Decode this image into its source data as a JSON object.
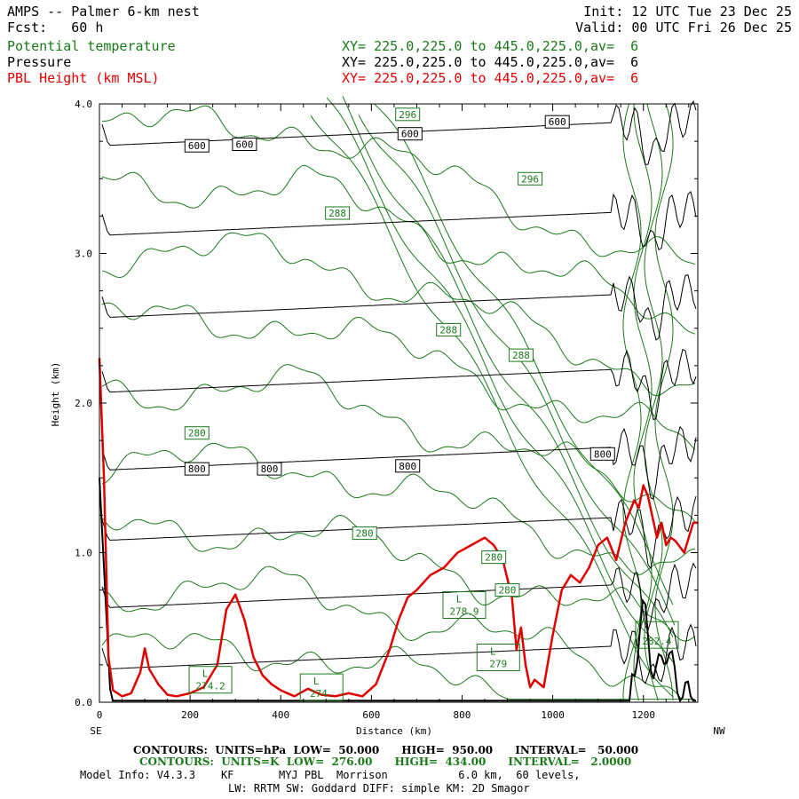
{
  "header": {
    "title": "AMPS -- Palmer 6-km nest",
    "forecast": "Fcst:   60 h",
    "init": "Init: 12 UTC Tue 23 Dec 25",
    "valid": "Valid: 00 UTC Fri 26 Dec 25",
    "fields": [
      {
        "name": "Potential temperature",
        "xy": "XY= 225.0,225.0 to 445.0,225.0,av=  6",
        "color": "#1a7a1a"
      },
      {
        "name": "Pressure",
        "xy": "XY= 225.0,225.0 to 445.0,225.0,av=  6",
        "color": "#000000"
      },
      {
        "name": "PBL Height (km MSL)",
        "xy": "XY= 225.0,225.0 to 445.0,225.0,av=  6",
        "color": "#e00000"
      }
    ]
  },
  "footer": {
    "pressure_contours": "CONTOURS:  UNITS=hPa  LOW=  50.000      HIGH=  950.00      INTERVAL=   50.000",
    "theta_contours": "CONTOURS:  UNITS=K  LOW=  276.00      HIGH=  434.00      INTERVAL=   2.0000",
    "model_info_1": "Model Info: V4.3.3    KF       MYJ PBL  Morrison           6.0 km,  60 levels,",
    "model_info_2": "LW: RRTM SW: Goddard DIFF: simple KM: 2D Smagor"
  },
  "chart_data": {
    "type": "line",
    "xlabel": "Distance (km)",
    "ylabel": "Height (km)",
    "xlim": [
      0,
      1320
    ],
    "ylim": [
      0,
      4.0
    ],
    "x_ticks": [
      0,
      200,
      400,
      600,
      800,
      1000,
      1200
    ],
    "y_ticks": [
      0.0,
      1.0,
      2.0,
      3.0,
      4.0
    ],
    "x_tick_labels": [
      "0",
      "200",
      "400",
      "600",
      "800",
      "1000",
      "1200"
    ],
    "y_tick_labels": [
      "0.0",
      "1.0",
      "2.0",
      "3.0",
      "4.0"
    ],
    "left_end_label": "SE",
    "right_end_label": "NW",
    "colors": {
      "pbl": "#e00000",
      "theta": "#1a7a1a",
      "pressure": "#000000"
    },
    "pbl_height_km": {
      "x": [
        0,
        10,
        20,
        30,
        50,
        70,
        90,
        100,
        110,
        130,
        150,
        170,
        200,
        230,
        260,
        280,
        300,
        320,
        340,
        360,
        380,
        400,
        430,
        460,
        490,
        520,
        550,
        580,
        610,
        640,
        660,
        680,
        700,
        730,
        760,
        790,
        820,
        850,
        870,
        890,
        910,
        920,
        930,
        940,
        950,
        960,
        980,
        1000,
        1020,
        1040,
        1060,
        1080,
        1100,
        1120,
        1140,
        1160,
        1180,
        1190,
        1200,
        1210,
        1230,
        1240,
        1250,
        1260,
        1270,
        1290,
        1310,
        1320
      ],
      "y": [
        2.3,
        1.5,
        0.3,
        0.08,
        0.04,
        0.06,
        0.2,
        0.36,
        0.22,
        0.12,
        0.05,
        0.04,
        0.06,
        0.1,
        0.25,
        0.62,
        0.72,
        0.55,
        0.3,
        0.18,
        0.12,
        0.08,
        0.04,
        0.09,
        0.05,
        0.04,
        0.06,
        0.04,
        0.12,
        0.35,
        0.55,
        0.7,
        0.75,
        0.85,
        0.9,
        1.0,
        1.05,
        1.1,
        1.05,
        0.95,
        0.7,
        0.35,
        0.5,
        0.25,
        0.1,
        0.15,
        0.1,
        0.45,
        0.75,
        0.85,
        0.8,
        0.9,
        1.05,
        1.1,
        0.95,
        1.2,
        1.35,
        1.3,
        1.45,
        1.38,
        1.1,
        1.2,
        1.05,
        1.1,
        1.08,
        1.0,
        1.2,
        1.2
      ]
    },
    "pressure_labels": [
      {
        "text": "600",
        "x": 215,
        "y": 3.72
      },
      {
        "text": "600",
        "x": 320,
        "y": 3.73
      },
      {
        "text": "600",
        "x": 685,
        "y": 3.8
      },
      {
        "text": "600",
        "x": 1010,
        "y": 3.88
      },
      {
        "text": "800",
        "x": 215,
        "y": 1.56
      },
      {
        "text": "800",
        "x": 375,
        "y": 1.56
      },
      {
        "text": "800",
        "x": 680,
        "y": 1.58
      },
      {
        "text": "800",
        "x": 1110,
        "y": 1.66
      }
    ],
    "pressure_levels_km": [
      3.72,
      3.12,
      2.57,
      2.07,
      1.55,
      1.08,
      0.63,
      0.22
    ],
    "theta_labels": [
      {
        "text": "296",
        "x": 680,
        "y": 3.93
      },
      {
        "text": "296",
        "x": 950,
        "y": 3.5
      },
      {
        "text": "288",
        "x": 525,
        "y": 3.27
      },
      {
        "text": "288",
        "x": 770,
        "y": 2.49
      },
      {
        "text": "288",
        "x": 930,
        "y": 2.32
      },
      {
        "text": "280",
        "x": 215,
        "y": 1.8
      },
      {
        "text": "280",
        "x": 585,
        "y": 1.13
      },
      {
        "text": "280",
        "x": 870,
        "y": 0.97
      },
      {
        "text": "280",
        "x": 900,
        "y": 0.75
      }
    ],
    "extrema": [
      {
        "letter": "L",
        "value": "274.2",
        "x": 245,
        "y": 0.15
      },
      {
        "letter": "L",
        "value": "274.",
        "x": 490,
        "y": 0.1
      },
      {
        "letter": "L",
        "value": "278.9",
        "x": 805,
        "y": 0.65
      },
      {
        "letter": "L",
        "value": "279",
        "x": 880,
        "y": 0.3
      },
      {
        "letter": "",
        "value": "282.4",
        "x": 1230,
        "y": 0.45
      }
    ]
  }
}
